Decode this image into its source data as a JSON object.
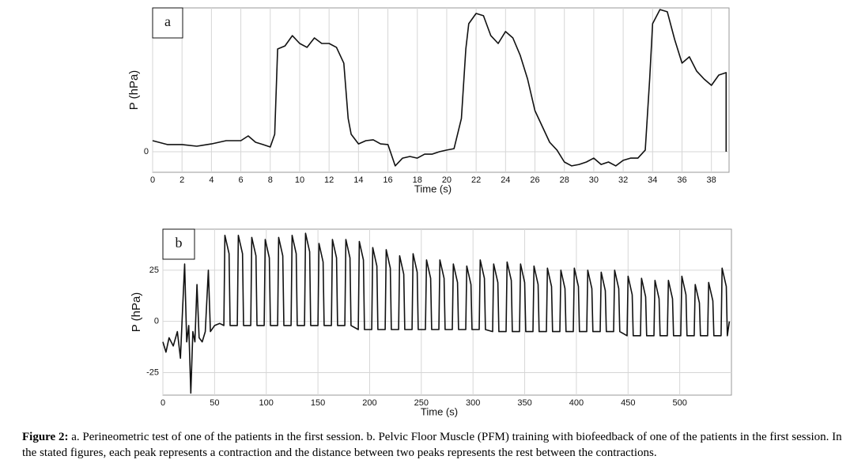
{
  "chart_data": [
    {
      "type": "line",
      "label": "a",
      "xlabel": "Time (s)",
      "ylabel": "P (hPa)",
      "color": "#111111",
      "grid": true,
      "xlim": [
        0,
        39.2
      ],
      "ylim": [
        -10,
        70
      ],
      "xticks": [
        0,
        2,
        4,
        6,
        8,
        10,
        12,
        14,
        16,
        18,
        20,
        22,
        24,
        26,
        28,
        30,
        32,
        34,
        36,
        38
      ],
      "yticks": [
        0
      ],
      "x": [
        0,
        1,
        2,
        3,
        4,
        5,
        6,
        6.5,
        7,
        7.5,
        8,
        8.3,
        8.5,
        9,
        9.5,
        10,
        10.5,
        11,
        11.5,
        12,
        12.5,
        13,
        13.3,
        13.5,
        14,
        14.5,
        15,
        15.5,
        16,
        16.5,
        17,
        17.5,
        18,
        18.5,
        19,
        19.5,
        20,
        20.5,
        21,
        21.3,
        21.5,
        22,
        22.5,
        23,
        23.5,
        24,
        24.5,
        25,
        25.5,
        26,
        26.5,
        27,
        27.5,
        28,
        28.5,
        29,
        29.5,
        30,
        30.5,
        31,
        31.5,
        32,
        32.5,
        33,
        33.5,
        33.8,
        34,
        34.5,
        35,
        35.5,
        36,
        36.5,
        37,
        37.5,
        38,
        38.5,
        39,
        39
      ],
      "values": [
        5.4,
        3.5,
        3.5,
        2.7,
        3.8,
        5.4,
        5.4,
        7.7,
        4.6,
        3.5,
        2.3,
        8.5,
        50,
        51.5,
        56.5,
        52.7,
        50.8,
        55.4,
        52.7,
        52.7,
        50.8,
        43.1,
        16.2,
        8.5,
        3.8,
        5.4,
        5.8,
        3.8,
        3.5,
        -6.9,
        -3.1,
        -2.3,
        -3.1,
        -1.2,
        -1.2,
        0,
        0.8,
        1.5,
        16.2,
        50,
        62.3,
        67.3,
        66.2,
        56.5,
        52.7,
        58.5,
        55.4,
        46.9,
        35.4,
        20,
        12.3,
        4.6,
        0.8,
        -5,
        -6.9,
        -6.2,
        -5,
        -3.1,
        -6.2,
        -5,
        -6.9,
        -4.2,
        -3.1,
        -3.1,
        0.8,
        35.4,
        62.3,
        69.2,
        68.1,
        54.6,
        43.1,
        46.2,
        39.2,
        35.4,
        32.3,
        37.3,
        38.5,
        0
      ]
    },
    {
      "type": "line",
      "label": "b",
      "xlabel": "Time (s)",
      "ylabel": "P (hPa)",
      "color": "#111111",
      "grid": true,
      "xlim": [
        0,
        550
      ],
      "ylim": [
        -36,
        45
      ],
      "xticks": [
        0,
        50,
        100,
        150,
        200,
        250,
        300,
        350,
        400,
        450,
        500
      ],
      "yticks": [
        -25,
        0,
        25
      ],
      "x": [
        0,
        3,
        6,
        10,
        14,
        17,
        19,
        21,
        23,
        25,
        27,
        29,
        31,
        33,
        35,
        38,
        41,
        44,
        46,
        50,
        55,
        59,
        60,
        64,
        65,
        72,
        73,
        77,
        78,
        85,
        86,
        90,
        91,
        98,
        99,
        103,
        104,
        111,
        112,
        116,
        117,
        124,
        125,
        129,
        130,
        137,
        138,
        142,
        143,
        150,
        151,
        155,
        156,
        163,
        164,
        168,
        169,
        176,
        177,
        181,
        182,
        189,
        190,
        194,
        195,
        202,
        203,
        207,
        208,
        215,
        216,
        220,
        221,
        228,
        229,
        233,
        234,
        241,
        242,
        246,
        247,
        254,
        255,
        259,
        260,
        267,
        268,
        272,
        273,
        280,
        281,
        285,
        286,
        293,
        294,
        298,
        299,
        306,
        307,
        311,
        312,
        319,
        320,
        324,
        325,
        332,
        333,
        337,
        338,
        345,
        346,
        350,
        351,
        358,
        359,
        363,
        364,
        371,
        372,
        376,
        377,
        384,
        385,
        389,
        390,
        397,
        398,
        402,
        403,
        410,
        411,
        415,
        416,
        423,
        424,
        428,
        429,
        436,
        437,
        441,
        442,
        449,
        450,
        454,
        455,
        462,
        463,
        467,
        468,
        475,
        476,
        480,
        481,
        488,
        489,
        493,
        494,
        501,
        502,
        506,
        507,
        514,
        515,
        519,
        520,
        527,
        528,
        532,
        533,
        540,
        541,
        545,
        546,
        548
      ],
      "values": [
        -10,
        -15,
        -8,
        -12,
        -5,
        -18,
        5,
        28,
        -10,
        -2,
        -35,
        -5,
        -10,
        18,
        -8,
        -10,
        -5,
        25,
        -5,
        -2,
        -1,
        -2,
        42,
        33,
        -2,
        -2,
        42,
        33,
        -2,
        -2,
        41,
        32,
        -2,
        -2,
        40,
        31,
        -2,
        -2,
        41,
        32,
        -2,
        -2,
        42,
        33,
        -2,
        -2,
        43,
        34,
        -2,
        -2,
        38,
        29,
        -2,
        -2,
        40,
        31,
        -2,
        -2,
        40,
        31,
        -2,
        -4,
        39,
        30,
        -4,
        -4,
        36,
        27,
        -4,
        -4,
        35,
        26,
        -4,
        -4,
        32,
        23,
        -4,
        -4,
        33,
        24,
        -4,
        -4,
        30,
        21,
        -4,
        -4,
        30,
        21,
        -4,
        -4,
        28,
        19,
        -4,
        -4,
        27,
        18,
        -4,
        -4,
        30,
        21,
        -4,
        -5,
        28,
        19,
        -5,
        -5,
        29,
        20,
        -5,
        -5,
        28,
        19,
        -5,
        -5,
        27,
        18,
        -5,
        -5,
        26,
        17,
        -5,
        -5,
        25,
        16,
        -5,
        -5,
        26,
        17,
        -5,
        -5,
        25,
        16,
        -5,
        -5,
        24,
        15,
        -5,
        -5,
        25,
        16,
        -5,
        -7,
        22,
        13,
        -7,
        -7,
        21,
        12,
        -7,
        -7,
        20,
        11,
        -7,
        -7,
        20,
        11,
        -7,
        -7,
        22,
        13,
        -7,
        -7,
        18,
        9,
        -7,
        -7,
        19,
        10,
        -7,
        -7,
        26,
        17,
        -7,
        0
      ]
    }
  ],
  "caption": {
    "label": "Figure 2:",
    "text": " a. Perineometric test of one of the patients in the first session. b. Pelvic Floor Muscle (PFM) training with biofeedback of one of the patients in the first session. In the stated figures, each peak represents a contraction and the distance between two peaks represents the rest between the contractions."
  }
}
